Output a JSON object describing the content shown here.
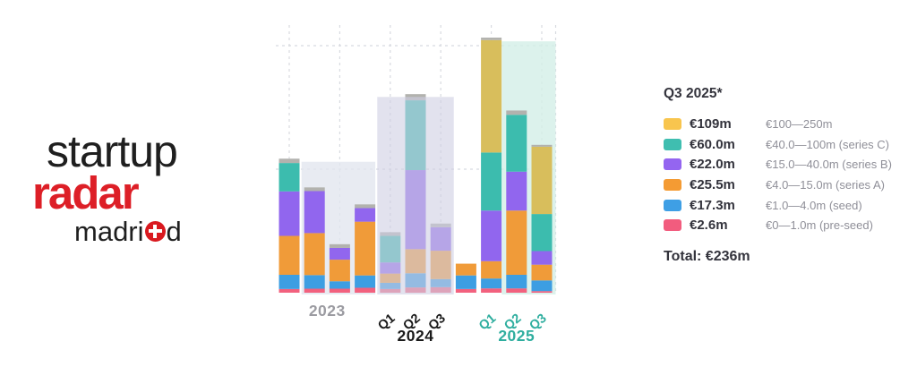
{
  "logo": {
    "word1": "startup",
    "word2": "radar",
    "word3_prefix": "madri",
    "word3_symbol": "plus-circle",
    "word3_suffix": "d",
    "red": "#dd1f27",
    "black": "#1f1f1f"
  },
  "legend": {
    "header": "Q3 2025*",
    "rows": [
      {
        "color": "#F8C54E",
        "value": "€109m",
        "range": "€100—250m"
      },
      {
        "color": "#3FBEB0",
        "value": "€60.0m",
        "range": "€40.0—100m (series C)"
      },
      {
        "color": "#9465F0",
        "value": "€22.0m",
        "range": "€15.0—40.0m (series B)"
      },
      {
        "color": "#F49B33",
        "value": "€25.5m",
        "range": "€4.0—15.0m (series A)"
      },
      {
        "color": "#3E9FE5",
        "value": "€17.3m",
        "range": "€1.0—4.0m (seed)"
      },
      {
        "color": "#F25C7E",
        "value": "€2.6m",
        "range": "€0—1.0m (pre-seed)"
      }
    ],
    "total": "Total: €236m"
  },
  "chart_data": {
    "type": "bar",
    "stacked": true,
    "unit": "EUR millions",
    "ylim": [
      0,
      433
    ],
    "categories": [
      "2023 Q1",
      "2023 Q2",
      "2023 Q3",
      "2023 Q4",
      "2024 Q1",
      "2024 Q2",
      "2024 Q3",
      "2024 Q4",
      "2025 Q1",
      "2025 Q2",
      "2025 Q3"
    ],
    "series": [
      {
        "name": "pre-seed (€0—1.0m)",
        "color": "#F2617E",
        "values": [
          6,
          6.5,
          6.5,
          8,
          6,
          8.5,
          9,
          6,
          7,
          7,
          2.6
        ]
      },
      {
        "name": "seed (€1.0—4.0m)",
        "color": "#3D9EE2",
        "values": [
          23,
          22,
          12,
          20,
          10,
          23,
          13,
          22,
          16,
          22,
          17.3
        ]
      },
      {
        "name": "series A (€4.0—15.0m)",
        "color": "#F09B39",
        "values": [
          63,
          68,
          35,
          87,
          15,
          39,
          46,
          19,
          28,
          104,
          25.5
        ]
      },
      {
        "name": "series B (€15.0—40.0m)",
        "color": "#9166EE",
        "values": [
          72,
          68,
          19,
          22,
          18,
          128,
          38,
          0,
          82,
          63,
          22
        ]
      },
      {
        "name": "series C (€40.0—100m)",
        "color": "#3CBCAE",
        "values": [
          46,
          0,
          0,
          0,
          43,
          113,
          0,
          0,
          94,
          92,
          60
        ]
      },
      {
        "name": "€100—250m",
        "color": "#D8BE5C",
        "values": [
          0,
          0,
          0,
          0,
          0,
          0,
          0,
          0,
          182,
          0,
          109
        ]
      },
      {
        "name": "cap (gray)",
        "color": "#B2B2AE",
        "values": [
          7,
          6,
          6,
          6,
          6,
          10,
          6,
          0,
          4,
          7,
          3
        ]
      }
    ],
    "grid": {
      "y_values": [
        200,
        400
      ],
      "vertical_quarter_centers": [
        0,
        2,
        4,
        6,
        8,
        10
      ],
      "right_border": true,
      "color": "#D8DAE0"
    },
    "reference_boxes": [
      {
        "span": "2023 Q2–Q4",
        "value": 212,
        "from": 1,
        "to": 3,
        "layer": "behind",
        "fill": "rgba(226,230,239,0.8)"
      },
      {
        "span": "2024 Q1–Q3",
        "value": 317,
        "from": 4,
        "to": 6,
        "layer": "front",
        "fill": "rgba(206,206,227,0.6)"
      },
      {
        "span": "2025 Q2–Q3",
        "value": 407,
        "from": 9,
        "to": 10,
        "layer": "behind",
        "fill": "rgba(211,239,231,0.8)"
      }
    ],
    "axis": {
      "quarter_labels": [
        {
          "text": "Q1",
          "q": 4,
          "color": "#1a1a1a"
        },
        {
          "text": "Q2",
          "q": 5,
          "color": "#1a1a1a"
        },
        {
          "text": "Q3",
          "q": 6,
          "color": "#1a1a1a"
        },
        {
          "text": "Q1",
          "q": 8,
          "color": "#2fae9f"
        },
        {
          "text": "Q2",
          "q": 9,
          "color": "#2fae9f"
        },
        {
          "text": "Q3",
          "q": 10,
          "color": "#2fae9f"
        }
      ],
      "year_labels": [
        {
          "text": "2023",
          "from": 0,
          "to": 3,
          "row": 1,
          "color": "#9b9ba1"
        },
        {
          "text": "2024",
          "from": 4,
          "to": 6,
          "row": 2,
          "color": "#1a1a1a"
        },
        {
          "text": "2025",
          "from": 8,
          "to": 10,
          "row": 2,
          "color": "#2fae9f"
        }
      ]
    }
  }
}
